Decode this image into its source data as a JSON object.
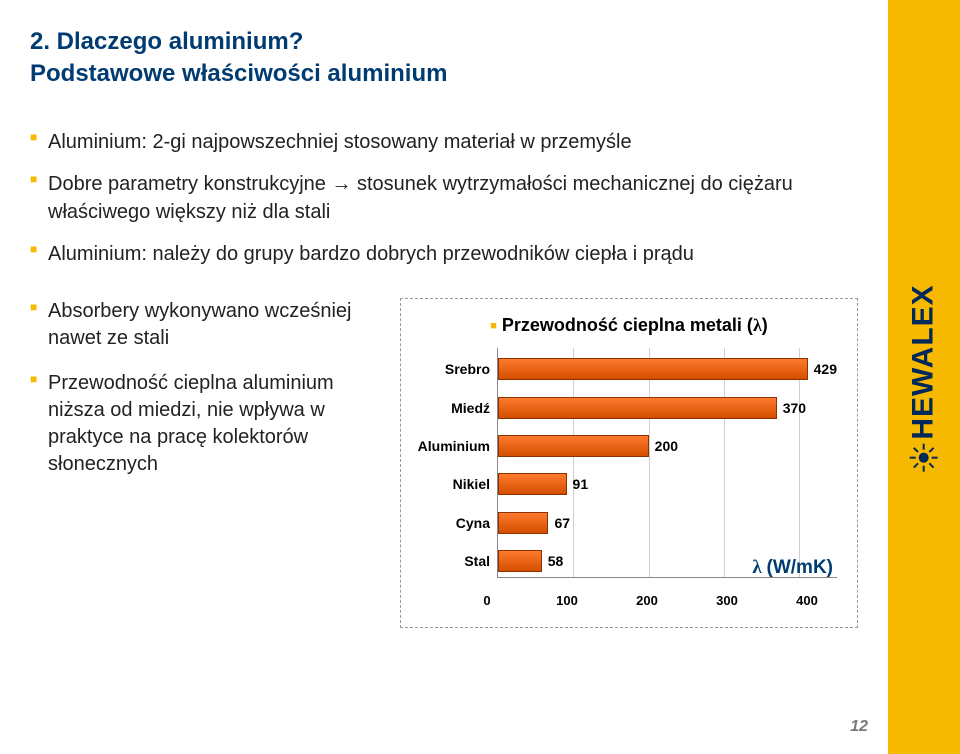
{
  "brand": {
    "name": "HEWALEX"
  },
  "header": {
    "title": "2. Dlaczego aluminium?",
    "subtitle": "Podstawowe właściwości aluminium"
  },
  "top_bullets": [
    "Aluminium: 2-gi najpowszechniej stosowany materiał w przemyśle",
    "Dobre parametry konstrukcyjne → stosunek wytrzymałości mechanicznej do ciężaru właściwego większy niż dla stali",
    "Aluminium: należy do grupy bardzo dobrych przewodników ciepła i prądu"
  ],
  "left_bullets": [
    "Absorbery wykonywano wcześniej nawet ze stali",
    "Przewodność cieplna aluminium niższa od miedzi, nie wpływa w praktyce na pracę kolektorów słonecznych"
  ],
  "chart": {
    "type": "bar-horizontal",
    "title_prefix": "Przewodność cieplna metali (",
    "title_lambda": "λ",
    "title_suffix": ")",
    "x_max": 450,
    "x_ticks": [
      0,
      100,
      200,
      300,
      400
    ],
    "bar_color_top": "#ff7a2e",
    "bar_color_bottom": "#d34e00",
    "bar_border": "#8a3200",
    "grid_color": "#d0d0d0",
    "axis_color": "#888888",
    "background_color": "#ffffff",
    "label_fontsize": 14,
    "value_fontsize": 14,
    "categories": [
      "Srebro",
      "Miedź",
      "Aluminium",
      "Nikiel",
      "Cyna",
      "Stal"
    ],
    "values": [
      429,
      370,
      200,
      91,
      67,
      58
    ],
    "unit_label": "λ (W/mK)"
  },
  "page_number": "12"
}
